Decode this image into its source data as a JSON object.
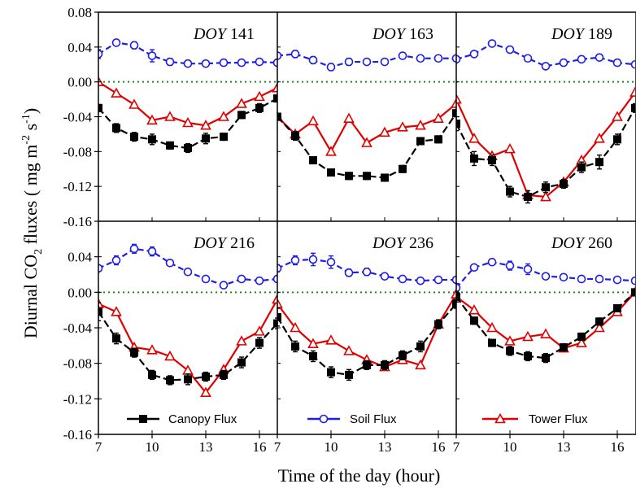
{
  "chart_data": {
    "type": "line",
    "ylabel": "Diurnal CO2 fluxes ( mg m-2 s-1)",
    "ylabel_parts": {
      "pre": "Diurnal CO",
      "sub": "2",
      "mid": " fluxes ( mg m",
      "sup1": "-2",
      "mid2": " s",
      "sup2": "-1",
      "post": ")"
    },
    "xlabel": "Time of the day (hour)",
    "xlim": [
      7,
      17
    ],
    "ylim": [
      -0.16,
      0.08
    ],
    "y_ticks": [
      "0.08",
      "0.04",
      "0.00",
      "-0.04",
      "-0.08",
      "-0.12",
      "-0.16"
    ],
    "y_tick_values": [
      0.08,
      0.04,
      0.0,
      -0.04,
      -0.08,
      -0.12,
      -0.16
    ],
    "x_ticks": [
      "7",
      "10",
      "13",
      "16"
    ],
    "x_tick_values": [
      7,
      10,
      13,
      16
    ],
    "zero_line": true,
    "legend_position": "bottom",
    "x": [
      7,
      8,
      9,
      10,
      11,
      12,
      13,
      14,
      15,
      16,
      17
    ],
    "series_style": [
      {
        "name": "Canopy Flux",
        "color": "#000000",
        "marker": "filled-square"
      },
      {
        "name": "Soil Flux",
        "color": "#1f1fe0",
        "marker": "open-circle"
      },
      {
        "name": "Tower Flux",
        "color": "#e00000",
        "marker": "open-triangle"
      }
    ],
    "zero_line_color": "#1a8a1a",
    "panels": [
      {
        "doy_word": "DOY",
        "doy_num": "141",
        "series": [
          {
            "name": "Canopy Flux",
            "values": [
              -0.03,
              -0.053,
              -0.063,
              -0.066,
              -0.073,
              -0.076,
              -0.065,
              -0.063,
              -0.038,
              -0.03,
              -0.019
            ],
            "err": [
              0.004,
              0.005,
              0.005,
              0.006,
              0.004,
              0.005,
              0.006,
              0.004,
              0.004,
              0.005,
              0.003
            ]
          },
          {
            "name": "Soil Flux",
            "values": [
              0.032,
              0.045,
              0.042,
              0.03,
              0.023,
              0.021,
              0.021,
              0.022,
              0.022,
              0.023,
              0.022
            ],
            "err": [
              0.005,
              0.003,
              0.004,
              0.007,
              0.004,
              0.003,
              0.003,
              0.003,
              0.003,
              0.003,
              0.003
            ]
          },
          {
            "name": "Tower Flux",
            "values": [
              0.0,
              -0.013,
              -0.026,
              -0.044,
              -0.04,
              -0.047,
              -0.05,
              -0.04,
              -0.025,
              -0.017,
              -0.007
            ],
            "err": [
              0,
              0,
              0,
              0,
              0,
              0,
              0,
              0,
              0,
              0,
              0
            ]
          }
        ]
      },
      {
        "doy_word": "DOY",
        "doy_num": "163",
        "series": [
          {
            "name": "Canopy Flux",
            "values": [
              -0.04,
              -0.062,
              -0.09,
              -0.104,
              -0.108,
              -0.108,
              -0.11,
              -0.1,
              -0.068,
              -0.066,
              -0.036
            ],
            "err": [
              0.004,
              0.005,
              0.004,
              0.004,
              0.004,
              0.004,
              0.004,
              0.004,
              0.004,
              0.004,
              0.004
            ]
          },
          {
            "name": "Soil Flux",
            "values": [
              0.03,
              0.032,
              0.025,
              0.017,
              0.023,
              0.023,
              0.023,
              0.03,
              0.027,
              0.027,
              0.027
            ],
            "err": [
              0.003,
              0.004,
              0.004,
              0.004,
              0.004,
              0.003,
              0.003,
              0.003,
              0.003,
              0.003,
              0.003
            ]
          },
          {
            "name": "Tower Flux",
            "values": [
              -0.04,
              -0.06,
              -0.045,
              -0.08,
              -0.042,
              -0.07,
              -0.058,
              -0.052,
              -0.05,
              -0.042,
              -0.025
            ],
            "err": [
              0,
              0,
              0,
              0,
              0,
              0,
              0,
              0,
              0,
              0,
              0
            ]
          }
        ]
      },
      {
        "doy_word": "DOY",
        "doy_num": "189",
        "series": [
          {
            "name": "Canopy Flux",
            "values": [
              -0.048,
              -0.088,
              -0.09,
              -0.126,
              -0.132,
              -0.121,
              -0.117,
              -0.098,
              -0.092,
              -0.066,
              -0.03
            ],
            "err": [
              0.008,
              0.008,
              0.006,
              0.006,
              0.007,
              0.006,
              0.005,
              0.006,
              0.008,
              0.006,
              0.005
            ]
          },
          {
            "name": "Soil Flux",
            "values": [
              0.026,
              0.032,
              0.044,
              0.037,
              0.027,
              0.018,
              0.022,
              0.026,
              0.028,
              0.022,
              0.02
            ],
            "err": [
              0.002,
              0.003,
              0.002,
              0.003,
              0.003,
              0.002,
              0.002,
              0.002,
              0.002,
              0.002,
              0.002
            ]
          },
          {
            "name": "Tower Flux",
            "values": [
              -0.02,
              -0.065,
              -0.085,
              -0.077,
              -0.13,
              -0.132,
              -0.115,
              -0.09,
              -0.065,
              -0.04,
              -0.012
            ],
            "err": [
              0,
              0,
              0,
              0,
              0,
              0,
              0,
              0,
              0,
              0,
              0
            ]
          }
        ]
      },
      {
        "doy_word": "DOY",
        "doy_num": "216",
        "series": [
          {
            "name": "Canopy Flux",
            "values": [
              -0.022,
              -0.052,
              -0.068,
              -0.093,
              -0.099,
              -0.098,
              -0.095,
              -0.093,
              -0.079,
              -0.057,
              -0.035
            ],
            "err": [
              0.01,
              0.006,
              0.005,
              0.005,
              0.005,
              0.006,
              0.005,
              0.005,
              0.006,
              0.006,
              0.006
            ]
          },
          {
            "name": "Soil Flux",
            "values": [
              0.027,
              0.036,
              0.049,
              0.046,
              0.033,
              0.023,
              0.015,
              0.008,
              0.015,
              0.013,
              0.015
            ],
            "err": [
              0.003,
              0.005,
              0.005,
              0.005,
              0.003,
              0.003,
              0.003,
              0.003,
              0.003,
              0.003,
              0.003
            ]
          },
          {
            "name": "Tower Flux",
            "values": [
              -0.013,
              -0.022,
              -0.062,
              -0.065,
              -0.072,
              -0.088,
              -0.113,
              -0.087,
              -0.055,
              -0.044,
              -0.008
            ],
            "err": [
              0,
              0,
              0,
              0,
              0,
              0,
              0,
              0,
              0,
              0,
              0
            ]
          }
        ]
      },
      {
        "doy_word": "DOY",
        "doy_num": "236",
        "series": [
          {
            "name": "Canopy Flux",
            "values": [
              -0.028,
              -0.061,
              -0.072,
              -0.09,
              -0.093,
              -0.082,
              -0.082,
              -0.071,
              -0.061,
              -0.036,
              -0.013
            ],
            "err": [
              0.01,
              0.006,
              0.006,
              0.006,
              0.006,
              0.005,
              0.005,
              0.005,
              0.006,
              0.005,
              0.005
            ]
          },
          {
            "name": "Soil Flux",
            "values": [
              0.027,
              0.036,
              0.037,
              0.034,
              0.022,
              0.023,
              0.018,
              0.015,
              0.013,
              0.014,
              0.014
            ],
            "err": [
              0.004,
              0.005,
              0.007,
              0.007,
              0.004,
              0.004,
              0.003,
              0.003,
              0.003,
              0.003,
              0.003
            ]
          },
          {
            "name": "Tower Flux",
            "values": [
              -0.013,
              -0.04,
              -0.058,
              -0.054,
              -0.066,
              -0.076,
              -0.084,
              -0.076,
              -0.082,
              -0.036,
              -0.002
            ],
            "err": [
              0,
              0,
              0,
              0,
              0,
              0,
              0,
              0,
              0,
              0,
              0
            ]
          }
        ]
      },
      {
        "doy_word": "DOY",
        "doy_num": "260",
        "series": [
          {
            "name": "Canopy Flux",
            "values": [
              -0.005,
              -0.032,
              -0.057,
              -0.066,
              -0.072,
              -0.074,
              -0.062,
              -0.05,
              -0.033,
              -0.018,
              0.0
            ],
            "err": [
              0.006,
              0.004,
              0.004,
              0.005,
              0.005,
              0.005,
              0.004,
              0.004,
              0.004,
              0.003,
              0.003
            ]
          },
          {
            "name": "Soil Flux",
            "values": [
              0.005,
              0.028,
              0.034,
              0.03,
              0.026,
              0.018,
              0.017,
              0.015,
              0.015,
              0.014,
              0.013
            ],
            "err": [
              0.005,
              0.003,
              0.003,
              0.005,
              0.006,
              0.003,
              0.003,
              0.003,
              0.003,
              0.003,
              0.003
            ]
          },
          {
            "name": "Tower Flux",
            "values": [
              -0.005,
              -0.02,
              -0.04,
              -0.055,
              -0.05,
              -0.047,
              -0.063,
              -0.057,
              -0.04,
              -0.022,
              0.0
            ],
            "err": [
              0,
              0,
              0,
              0,
              0,
              0,
              0,
              0,
              0,
              0,
              0
            ]
          }
        ]
      }
    ]
  }
}
